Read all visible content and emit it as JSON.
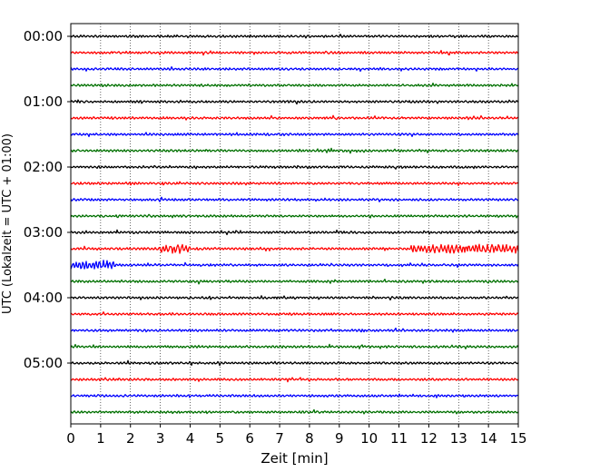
{
  "chart_data": {
    "type": "line",
    "title": "",
    "xlabel": "Zeit  [min]",
    "ylabel": "UTC (Lokalzeit = UTC + 01:00)",
    "xlim": [
      0,
      15
    ],
    "x_ticks": [
      "0",
      "1",
      "2",
      "3",
      "4",
      "5",
      "6",
      "7",
      "8",
      "9",
      "10",
      "11",
      "12",
      "13",
      "14",
      "15"
    ],
    "y_ticks": [
      "00:00",
      "01:00",
      "02:00",
      "03:00",
      "04:00",
      "05:00"
    ],
    "grid": {
      "vertical": true,
      "style": "dotted"
    },
    "trace_colors": [
      "#000000",
      "#ff0000",
      "#0000ff",
      "#007000"
    ],
    "trace_count": 24,
    "minutes_per_trace": 15,
    "series": [
      {
        "start": "00:00",
        "color": "#000000",
        "events": []
      },
      {
        "start": "00:15",
        "color": "#ff0000",
        "events": []
      },
      {
        "start": "00:30",
        "color": "#0000ff",
        "events": []
      },
      {
        "start": "00:45",
        "color": "#007000",
        "events": []
      },
      {
        "start": "01:00",
        "color": "#000000",
        "events": []
      },
      {
        "start": "01:15",
        "color": "#ff0000",
        "events": []
      },
      {
        "start": "01:30",
        "color": "#0000ff",
        "events": []
      },
      {
        "start": "01:45",
        "color": "#007000",
        "events": []
      },
      {
        "start": "02:00",
        "color": "#000000",
        "events": []
      },
      {
        "start": "02:15",
        "color": "#ff0000",
        "events": []
      },
      {
        "start": "02:30",
        "color": "#0000ff",
        "events": []
      },
      {
        "start": "02:45",
        "color": "#007000",
        "events": []
      },
      {
        "start": "03:00",
        "color": "#000000",
        "events": []
      },
      {
        "start": "03:15",
        "color": "#ff0000",
        "events": [
          [
            3.0,
            4.0
          ],
          [
            11.4,
            15.0
          ]
        ]
      },
      {
        "start": "03:30",
        "color": "#0000ff",
        "events": [
          [
            0.0,
            1.5
          ]
        ]
      },
      {
        "start": "03:45",
        "color": "#007000",
        "events": []
      },
      {
        "start": "04:00",
        "color": "#000000",
        "events": []
      },
      {
        "start": "04:15",
        "color": "#ff0000",
        "events": []
      },
      {
        "start": "04:30",
        "color": "#0000ff",
        "events": []
      },
      {
        "start": "04:45",
        "color": "#007000",
        "events": []
      },
      {
        "start": "05:00",
        "color": "#000000",
        "events": []
      },
      {
        "start": "05:15",
        "color": "#ff0000",
        "events": []
      },
      {
        "start": "05:30",
        "color": "#0000ff",
        "events": []
      },
      {
        "start": "05:45",
        "color": "#007000",
        "events": []
      }
    ]
  }
}
